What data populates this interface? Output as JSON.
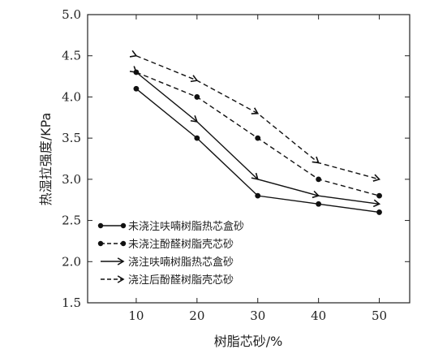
{
  "chart_data": {
    "type": "line",
    "xlabel": "树脂芯砂/%",
    "ylabel": "热湿拉强度/KPa",
    "x": [
      10,
      20,
      30,
      40,
      50
    ],
    "xticks": [
      "10",
      "20",
      "30",
      "40",
      "50"
    ],
    "xlim": [
      2,
      55
    ],
    "ylim": [
      1.5,
      5.0
    ],
    "yticks": [
      "1.5",
      "2.0",
      "2.5",
      "3.0",
      "3.5",
      "4.0",
      "4.5",
      "5.0"
    ],
    "grid": false,
    "legend_position": "bottom-left",
    "series": [
      {
        "name": "未浇注呋喃树脂热芯盒砂",
        "values": [
          4.1,
          3.5,
          2.8,
          2.7,
          2.6
        ],
        "line": "solid",
        "marker": "dot",
        "color": "#111111"
      },
      {
        "name": "未浇注酚醛树脂壳芯砂",
        "values": [
          4.3,
          4.0,
          3.5,
          3.0,
          2.8
        ],
        "line": "dashed",
        "marker": "dot",
        "color": "#111111"
      },
      {
        "name": "浇注呋喃树脂热芯盒砂",
        "values": [
          4.3,
          3.7,
          3.0,
          2.8,
          2.7
        ],
        "line": "solid",
        "marker": "arrow",
        "color": "#111111"
      },
      {
        "name": "浇注后酚醛树脂壳芯砂",
        "values": [
          4.5,
          4.2,
          3.8,
          3.2,
          3.0
        ],
        "line": "dashed",
        "marker": "arrow",
        "color": "#111111"
      }
    ]
  }
}
